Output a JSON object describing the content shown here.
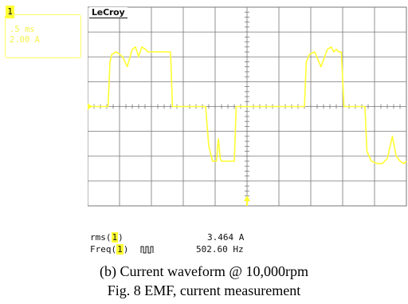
{
  "channel": {
    "id": "1",
    "timebase": ".5 ms",
    "scale": "2.00 A"
  },
  "scope": {
    "brand": "LeCroy",
    "colors": {
      "trace": "#ffff33",
      "grid": "#777777",
      "background": "#ffffff"
    }
  },
  "measurements": {
    "rms_label": "rms(",
    "rms_channel": "1",
    "rms_close": ")",
    "rms_value": "3.464 A",
    "freq_label": "Freq(",
    "freq_channel": "1",
    "freq_close": ")",
    "freq_icon": "square-pulse-icon",
    "freq_value": "502.60 Hz"
  },
  "captions": {
    "sub": "(b) Current waveform @ 10,000rpm",
    "main": "Fig. 8 EMF, current measurement"
  },
  "chart_data": {
    "type": "line",
    "title": "",
    "xlabel": "",
    "ylabel": "",
    "x_unit_per_div": "0.5 ms",
    "y_unit_per_div": "2.00 A",
    "xlim": [
      0,
      5
    ],
    "ylim": [
      -4,
      4
    ],
    "grid": true,
    "series": [
      {
        "x": [
          0.0,
          0.32,
          0.35,
          0.38,
          0.45,
          0.55,
          0.62,
          0.7,
          0.75,
          0.8,
          0.85,
          0.91,
          0.94,
          0.97,
          1.05,
          1.3,
          1.33,
          1.4,
          1.45,
          1.6,
          1.7,
          1.78,
          1.85,
          1.9,
          1.96,
          2.02,
          2.05,
          2.08,
          2.1,
          2.3,
          2.33,
          2.38,
          2.44,
          2.5,
          2.55,
          2.6,
          2.66,
          2.74,
          2.8,
          2.88,
          2.92,
          3.0,
          3.05,
          3.4,
          3.43,
          3.48,
          3.56,
          3.66,
          3.76,
          3.82,
          3.86,
          3.9,
          3.94,
          3.98,
          4.02,
          4.1,
          4.13,
          4.35,
          4.38,
          4.45,
          4.55,
          4.62,
          4.7,
          4.78,
          4.84,
          4.9,
          4.96,
          5.0
        ],
        "y": [
          0.0,
          0.0,
          1.8,
          2.1,
          2.2,
          2.0,
          1.6,
          2.3,
          2.4,
          2.0,
          2.4,
          2.3,
          2.2,
          2.2,
          2.2,
          2.2,
          0.0,
          0.0,
          0.0,
          0.0,
          0.0,
          0.0,
          0.0,
          -1.6,
          -2.2,
          -2.2,
          -1.3,
          -2.1,
          -2.2,
          -2.2,
          0.0,
          0.0,
          0.0,
          0.0,
          0.0,
          0.0,
          0.0,
          0.0,
          0.0,
          0.0,
          0.0,
          0.0,
          0.0,
          0.0,
          1.8,
          2.1,
          2.2,
          1.6,
          2.3,
          2.4,
          2.2,
          2.3,
          2.2,
          2.2,
          0.0,
          0.0,
          0.0,
          0.0,
          -1.8,
          -2.2,
          -2.3,
          -2.3,
          -2.1,
          -1.2,
          -2.0,
          -2.2,
          -2.3,
          -2.2
        ]
      }
    ]
  }
}
